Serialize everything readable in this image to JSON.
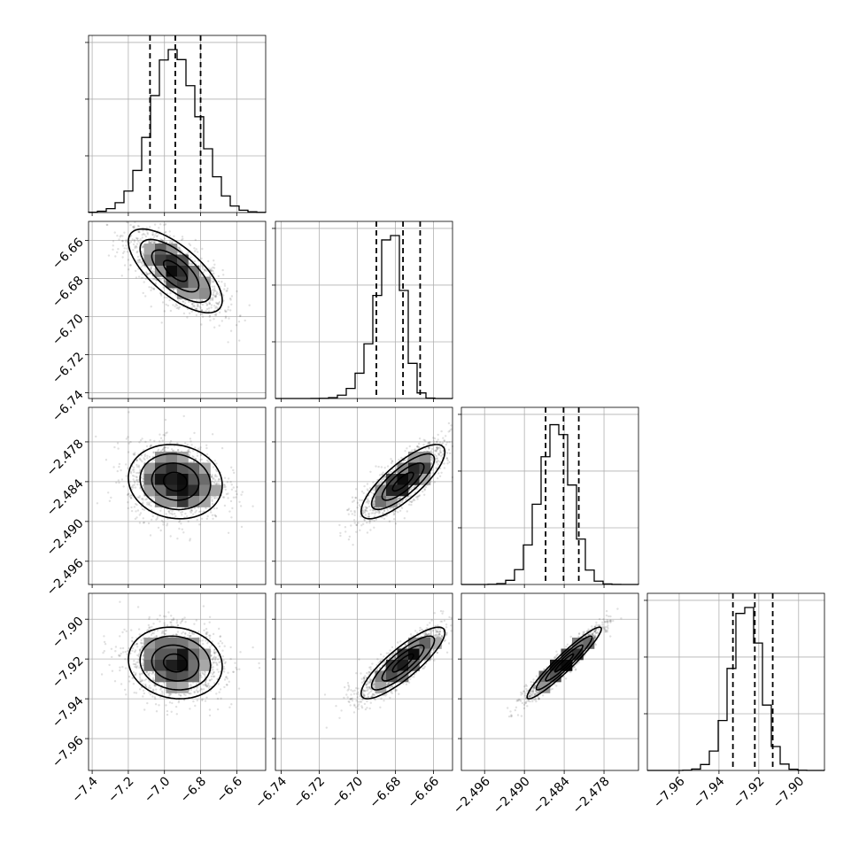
{
  "chart_data": {
    "type": "corner",
    "parameters": [
      {
        "ticks": [
          -7.4,
          -7.2,
          -7.0,
          -6.8,
          -6.6
        ],
        "tick_labels": [
          "−7.4",
          "−7.2",
          "−7.0",
          "−6.8",
          "−6.6"
        ],
        "range": [
          -7.42,
          -6.44
        ],
        "mean": -6.94,
        "sigma": 0.13,
        "skew": 0.0,
        "quantiles": [
          -7.08,
          -6.94,
          -6.8
        ]
      },
      {
        "ticks": [
          -6.74,
          -6.72,
          -6.7,
          -6.68,
          -6.66
        ],
        "tick_labels": [
          "−6.74",
          "−6.72",
          "−6.70",
          "−6.68",
          "−6.66"
        ],
        "range": [
          -6.743,
          -6.65
        ],
        "mean": -6.676,
        "sigma": 0.011,
        "skew": -2.0,
        "quantiles": [
          -6.69,
          -6.676,
          -6.667
        ]
      },
      {
        "ticks": [
          -2.496,
          -2.49,
          -2.484,
          -2.478
        ],
        "tick_labels": [
          "−2.496",
          "−2.490",
          "−2.484",
          "−2.478"
        ],
        "range": [
          -2.4995,
          -2.4728
        ],
        "mean": -2.484,
        "sigma": 0.0028,
        "skew": -0.8,
        "quantiles": [
          -2.4868,
          -2.4841,
          -2.4818
        ]
      },
      {
        "ticks": [
          -7.96,
          -7.94,
          -7.92,
          -7.9
        ],
        "tick_labels": [
          "−7.96",
          "−7.94",
          "−7.92",
          "−7.90"
        ],
        "range": [
          -7.976,
          -7.887
        ],
        "mean": -7.922,
        "sigma": 0.009,
        "skew": -0.8,
        "quantiles": [
          -7.933,
          -7.922,
          -7.913
        ]
      }
    ],
    "correlations": [
      {
        "pair": [
          1,
          0
        ],
        "rho": -0.7
      },
      {
        "pair": [
          2,
          0
        ],
        "rho": -0.1
      },
      {
        "pair": [
          2,
          1
        ],
        "rho": 0.8
      },
      {
        "pair": [
          3,
          0
        ],
        "rho": -0.1
      },
      {
        "pair": [
          3,
          1
        ],
        "rho": 0.85
      },
      {
        "pair": [
          3,
          2
        ],
        "rho": 0.95
      }
    ],
    "histogram_bins": 20,
    "grid": true,
    "contour_levels_sigma": [
      0.5,
      1.0,
      1.5,
      2.0
    ]
  }
}
